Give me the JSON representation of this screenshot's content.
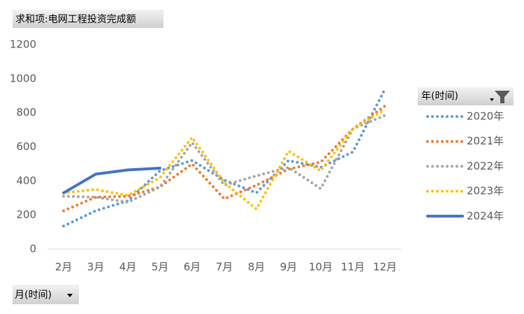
{
  "chart_data": {
    "type": "line",
    "value_field": "求和项:电网工程投资完成额",
    "legend_title": "年(时间)",
    "x_field": "月(时间)",
    "categories": [
      "2月",
      "3月",
      "4月",
      "5月",
      "6月",
      "7月",
      "8月",
      "9月",
      "10月",
      "11月",
      "12月"
    ],
    "series": [
      {
        "name": "2020年",
        "color": "#5b9bd5",
        "style": "dotted",
        "values": [
          135,
          225,
          283,
          460,
          520,
          405,
          330,
          520,
          480,
          570,
          940
        ]
      },
      {
        "name": "2021年",
        "color": "#ed7d31",
        "style": "dotted",
        "values": [
          225,
          305,
          310,
          365,
          500,
          295,
          375,
          470,
          510,
          705,
          840
        ]
      },
      {
        "name": "2022年",
        "color": "#a5a5a5",
        "style": "dotted",
        "values": [
          310,
          305,
          275,
          365,
          625,
          375,
          430,
          480,
          355,
          705,
          785
        ]
      },
      {
        "name": "2023年",
        "color": "#ffc000",
        "style": "dotted",
        "values": [
          330,
          350,
          315,
          420,
          655,
          390,
          235,
          575,
          460,
          705,
          820
        ]
      },
      {
        "name": "2024年",
        "color": "#4472c4",
        "style": "solid",
        "values": [
          330,
          440,
          465,
          475,
          null,
          null,
          null,
          null,
          null,
          null,
          null
        ]
      }
    ],
    "ylim": [
      0,
      1200
    ],
    "yticks": [
      0,
      200,
      400,
      600,
      800,
      1000,
      1200
    ],
    "grid": false,
    "legend": "right"
  }
}
